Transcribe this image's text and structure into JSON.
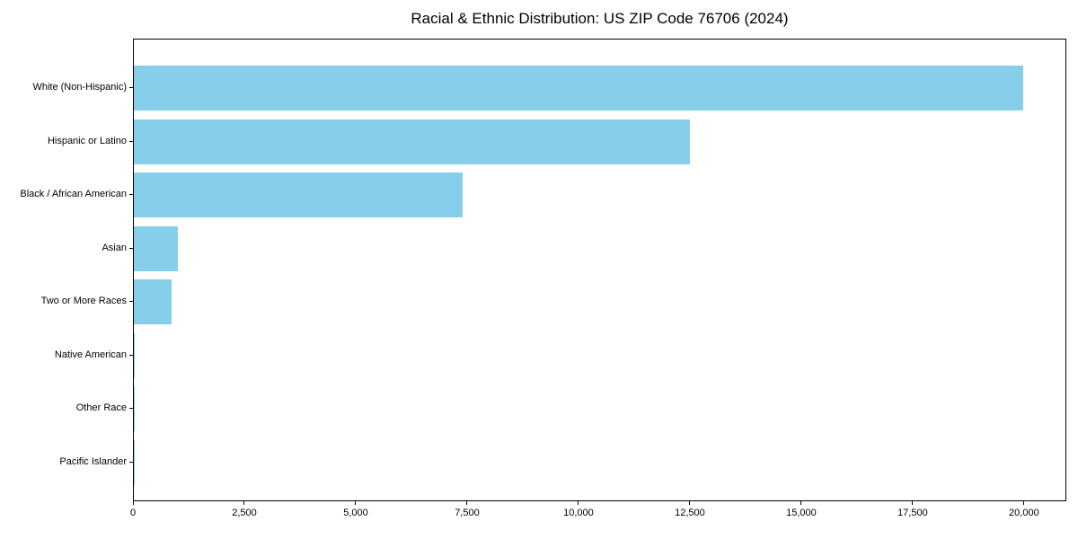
{
  "chart_data": {
    "type": "bar",
    "orientation": "horizontal",
    "title": "Racial & Ethnic Distribution: US ZIP Code 76706 (2024)",
    "categories": [
      "White (Non-Hispanic)",
      "Hispanic or Latino",
      "Black / African American",
      "Asian",
      "Two or More Races",
      "Native American",
      "Other Race",
      "Pacific Islander"
    ],
    "values": [
      19960,
      12480,
      7380,
      980,
      840,
      30,
      15,
      10
    ],
    "xlabel": "",
    "ylabel": "",
    "xlim": [
      0,
      20950
    ],
    "x_ticks": [
      0,
      2500,
      5000,
      7500,
      10000,
      12500,
      15000,
      17500,
      20000
    ],
    "x_tick_labels": [
      "0",
      "2,500",
      "5,000",
      "7,500",
      "10,000",
      "12,500",
      "15,000",
      "17,500",
      "20,000"
    ],
    "bar_color": "#87CEEB",
    "background_color": "#ffffff",
    "frame_color": "#000000",
    "grid": false,
    "legend": false
  }
}
